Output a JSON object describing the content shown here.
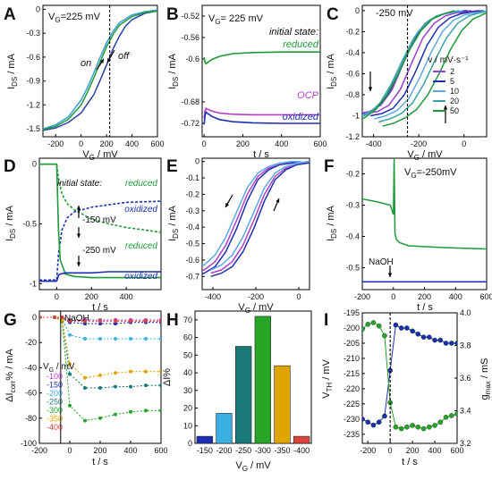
{
  "figure": {
    "title": ""
  },
  "chart_data": [
    {
      "panel": "A",
      "type": "line",
      "xlabel": "V_G / mV",
      "ylabel": "I_DS / mA",
      "xlim": [
        -300,
        600
      ],
      "ylim": [
        -1.6,
        0.05
      ],
      "xticks": [
        -200,
        0,
        200,
        400,
        600
      ],
      "yticks": [
        -1.5,
        -1.2,
        -0.9,
        -0.6,
        -0.3,
        0.0
      ],
      "annotations": [
        "V_G=225 mV",
        "on",
        "off"
      ],
      "marker_x": 225,
      "series": [
        {
          "color": "#2b3fa8",
          "x": [
            -300,
            -200,
            -100,
            0,
            100,
            150,
            200,
            250,
            300,
            350,
            400,
            500,
            600
          ],
          "y": [
            -1.52,
            -1.49,
            -1.42,
            -1.3,
            -1.07,
            -0.89,
            -0.7,
            -0.5,
            -0.34,
            -0.21,
            -0.13,
            -0.05,
            -0.02
          ]
        },
        {
          "color": "#3b9fd6",
          "x": [
            -300,
            -200,
            -100,
            0,
            50,
            100,
            150,
            200,
            250,
            300,
            400,
            500,
            600
          ],
          "y": [
            -1.5,
            -1.45,
            -1.35,
            -1.14,
            -0.98,
            -0.8,
            -0.6,
            -0.42,
            -0.28,
            -0.17,
            -0.07,
            -0.03,
            -0.01
          ]
        },
        {
          "color": "#1f9a3a",
          "x": [
            -300,
            -200,
            -100,
            0,
            50,
            100,
            150,
            200,
            250,
            300,
            400,
            500,
            600
          ],
          "y": [
            -1.51,
            -1.47,
            -1.38,
            -1.2,
            -1.04,
            -0.86,
            -0.66,
            -0.47,
            -0.32,
            -0.2,
            -0.09,
            -0.04,
            -0.02
          ]
        }
      ]
    },
    {
      "panel": "B",
      "type": "line",
      "xlabel": "t / s",
      "ylabel": "I_DS / mA",
      "xlim": [
        -10,
        600
      ],
      "ylim": [
        -0.745,
        -0.5
      ],
      "xticks": [
        0,
        200,
        400,
        600
      ],
      "yticks": [
        -0.72,
        -0.68,
        -0.6,
        -0.56,
        -0.52
      ],
      "annotations": [
        "V_G= 225 mV",
        "initial state:"
      ],
      "series": [
        {
          "name": "reduced",
          "color": "#1f9a3a",
          "x": [
            0,
            5,
            10,
            20,
            40,
            80,
            150,
            250,
            400,
            600
          ],
          "y": [
            -0.597,
            -0.606,
            -0.609,
            -0.606,
            -0.601,
            -0.595,
            -0.59,
            -0.588,
            -0.587,
            -0.587
          ]
        },
        {
          "name": "OCP",
          "color": "#b23fc6",
          "x": [
            0,
            5,
            10,
            20,
            40,
            80,
            150,
            250,
            400,
            600
          ],
          "y": [
            -0.71,
            -0.697,
            -0.692,
            -0.694,
            -0.697,
            -0.701,
            -0.703,
            -0.704,
            -0.704,
            -0.704
          ]
        },
        {
          "name": "oxidized",
          "color": "#1d2fb0",
          "x": [
            0,
            5,
            10,
            20,
            40,
            80,
            150,
            250,
            400,
            600
          ],
          "y": [
            -0.722,
            -0.706,
            -0.699,
            -0.702,
            -0.707,
            -0.713,
            -0.717,
            -0.719,
            -0.72,
            -0.72
          ]
        }
      ]
    },
    {
      "panel": "C",
      "type": "line",
      "xlabel": "V_G / mV",
      "ylabel": "I_DS / mA",
      "xlim": [
        -450,
        100
      ],
      "ylim": [
        -1.2,
        0.05
      ],
      "xticks": [
        -400,
        -200,
        0
      ],
      "yticks": [
        -1.2,
        -1.0,
        -0.8,
        -0.6,
        -0.4,
        -0.2,
        0.0
      ],
      "annotations": [
        "-250 mV",
        "v / mV·s⁻¹"
      ],
      "marker_x": -250,
      "series": [
        {
          "name": "2",
          "color": "#9a3fd0",
          "x": [
            -450,
            -400,
            -350,
            -300,
            -250,
            -200,
            -150,
            -100,
            -50,
            0,
            50
          ],
          "y": [
            -0.98,
            -0.96,
            -0.9,
            -0.75,
            -0.5,
            -0.26,
            -0.12,
            -0.05,
            -0.02,
            -0.01,
            0.0
          ]
        },
        {
          "name": "5",
          "color": "#1d2fb0",
          "x": [
            -450,
            -400,
            -350,
            -300,
            -250,
            -200,
            -150,
            -100,
            -50,
            0,
            50
          ],
          "y": [
            -1.0,
            -0.98,
            -0.93,
            -0.8,
            -0.58,
            -0.33,
            -0.16,
            -0.07,
            -0.03,
            -0.01,
            0.0
          ]
        },
        {
          "name": "10",
          "color": "#5aa9e6",
          "x": [
            -450,
            -400,
            -350,
            -300,
            -250,
            -200,
            -150,
            -100,
            -50,
            0,
            50
          ],
          "y": [
            -1.03,
            -1.0,
            -0.95,
            -0.84,
            -0.64,
            -0.4,
            -0.2,
            -0.09,
            -0.04,
            -0.02,
            0.0
          ]
        },
        {
          "name": "20",
          "color": "#3aa3a3",
          "x": [
            -450,
            -400,
            -350,
            -300,
            -250,
            -200,
            -150,
            -100,
            -50,
            0,
            50
          ],
          "y": [
            -1.06,
            -1.03,
            -0.98,
            -0.88,
            -0.7,
            -0.47,
            -0.26,
            -0.12,
            -0.05,
            -0.02,
            0.0
          ]
        },
        {
          "name": "50",
          "color": "#1f9a3a",
          "x": [
            -450,
            -400,
            -350,
            -300,
            -250,
            -200,
            -150,
            -100,
            -50,
            0,
            50
          ],
          "y": [
            -1.1,
            -1.07,
            -1.02,
            -0.94,
            -0.8,
            -0.6,
            -0.37,
            -0.19,
            -0.08,
            -0.03,
            0.0
          ]
        }
      ]
    },
    {
      "panel": "D",
      "type": "line",
      "xlabel": "t / s",
      "ylabel": "I_DS / mA",
      "xlim": [
        -100,
        600
      ],
      "ylim": [
        -1.05,
        0.05
      ],
      "xticks": [
        0,
        200,
        400
      ],
      "yticks": [
        -1.0,
        -0.5,
        0.0
      ],
      "annotations": [
        "initial state:",
        "-150 mV",
        "-250 mV"
      ],
      "series": [
        {
          "name": "reduced",
          "color": "#1f9a3a",
          "x": [
            -100,
            0,
            10,
            30,
            60,
            100,
            200,
            300,
            400,
            600
          ],
          "y": [
            0.0,
            0.0,
            -0.12,
            -0.25,
            -0.33,
            -0.38,
            -0.46,
            -0.5,
            -0.53,
            -0.57
          ]
        },
        {
          "name": "oxidized",
          "color": "#1d2fb0",
          "x": [
            -100,
            0,
            10,
            30,
            60,
            100,
            200,
            300,
            400,
            600
          ],
          "y": [
            -0.97,
            -0.97,
            -0.75,
            -0.55,
            -0.45,
            -0.4,
            -0.36,
            -0.34,
            -0.32,
            -0.31
          ]
        },
        {
          "name": "reduced",
          "color": "#1f9a3a",
          "x": [
            -100,
            0,
            10,
            20,
            50,
            100,
            200,
            300,
            400,
            600
          ],
          "y": [
            0.0,
            0.0,
            -0.55,
            -0.8,
            -0.92,
            -0.94,
            -0.95,
            -0.95,
            -0.95,
            -0.95
          ]
        },
        {
          "name": "oxidized",
          "color": "#1d2fb0",
          "x": [
            -100,
            0,
            10,
            20,
            50,
            100,
            200,
            300,
            400,
            600
          ],
          "y": [
            -0.98,
            -0.98,
            -0.93,
            -0.92,
            -0.91,
            -0.91,
            -0.91,
            -0.9,
            -0.9,
            -0.9
          ]
        }
      ]
    },
    {
      "panel": "E",
      "type": "line",
      "xlabel": "V_G / mV",
      "ylabel": "I_DS / mA",
      "xlim": [
        -450,
        50
      ],
      "ylim": [
        -0.78,
        0.02
      ],
      "xticks": [
        -400,
        -200,
        0
      ],
      "yticks": [
        -0.7,
        -0.6,
        -0.5,
        -0.4,
        -0.3,
        -0.2,
        -0.1,
        0.0
      ],
      "series": [
        {
          "color": "#b23fc6",
          "x": [
            -450,
            -400,
            -350,
            -300,
            -250,
            -200,
            -150,
            -100,
            -50,
            0,
            50
          ],
          "y": [
            -0.68,
            -0.66,
            -0.61,
            -0.51,
            -0.36,
            -0.2,
            -0.09,
            -0.04,
            -0.02,
            -0.01,
            0.0
          ]
        },
        {
          "color": "#1d2fb0",
          "x": [
            -450,
            -400,
            -350,
            -300,
            -250,
            -200,
            -150,
            -100,
            -50,
            0,
            50
          ],
          "y": [
            -0.7,
            -0.68,
            -0.64,
            -0.55,
            -0.41,
            -0.24,
            -0.11,
            -0.05,
            -0.02,
            -0.01,
            0.0
          ]
        },
        {
          "color": "#5aa9e6",
          "x": [
            -450,
            -400,
            -350,
            -300,
            -250,
            -200,
            -150,
            -100,
            -50,
            0,
            50
          ],
          "y": [
            -0.66,
            -0.63,
            -0.57,
            -0.46,
            -0.31,
            -0.16,
            -0.07,
            -0.03,
            -0.01,
            0.0,
            0.0
          ]
        }
      ]
    },
    {
      "panel": "F",
      "type": "line",
      "xlabel": "t / s",
      "ylabel": "I_DS / mA",
      "xlim": [
        -200,
        600
      ],
      "ylim": [
        -0.57,
        -0.15
      ],
      "xticks": [
        -200,
        0,
        200,
        400,
        600
      ],
      "yticks": [
        -0.5,
        -0.4,
        -0.3,
        -0.2
      ],
      "annotations": [
        "V_G=-250mV",
        "NaOH"
      ],
      "series": [
        {
          "color": "#1f9a3a",
          "x": [
            -200,
            -100,
            -20,
            0,
            5,
            10,
            20,
            40,
            100,
            300,
            600
          ],
          "y": [
            -0.28,
            -0.29,
            -0.3,
            -0.33,
            -0.15,
            -0.39,
            -0.41,
            -0.42,
            -0.43,
            -0.435,
            -0.44
          ]
        },
        {
          "color": "#1d2fb0",
          "x": [
            -200,
            -100,
            0,
            100,
            300,
            600
          ],
          "y": [
            -0.545,
            -0.545,
            -0.545,
            -0.545,
            -0.545,
            -0.545
          ]
        }
      ]
    },
    {
      "panel": "G",
      "type": "line",
      "xlabel": "t / s",
      "ylabel": "ΔI_corr% / mA",
      "xlim": [
        -200,
        600
      ],
      "ylim": [
        -100,
        5
      ],
      "xticks": [
        -200,
        0,
        200,
        400,
        600
      ],
      "yticks": [
        -100,
        -80,
        -60,
        -40,
        -20,
        0
      ],
      "annotations": [
        "NaOH",
        "V_G / mV"
      ],
      "series": [
        {
          "name": "-100",
          "color": "#b23fc6",
          "x": [
            -200,
            -100,
            -50,
            0,
            100,
            200,
            300,
            400,
            500,
            600
          ],
          "y": [
            0,
            0,
            0,
            -2,
            -2,
            -2,
            -2,
            -2,
            -2,
            -2
          ]
        },
        {
          "name": "-150",
          "color": "#1d2fb0",
          "x": [
            -200,
            -100,
            -50,
            0,
            100,
            200,
            300,
            400,
            500,
            600
          ],
          "y": [
            0,
            0,
            0,
            -4,
            -5,
            -5,
            -5,
            -4,
            -4,
            -4
          ]
        },
        {
          "name": "-200",
          "color": "#3ab0e0",
          "x": [
            -200,
            -100,
            -50,
            0,
            100,
            200,
            300,
            400,
            500,
            600
          ],
          "y": [
            0,
            0,
            -1,
            -14,
            -17,
            -17,
            -17,
            -17,
            -17,
            -17
          ]
        },
        {
          "name": "-250",
          "color": "#1a7a7a",
          "x": [
            -200,
            -100,
            -50,
            0,
            100,
            200,
            300,
            400,
            500,
            600
          ],
          "y": [
            0,
            0,
            -2,
            -45,
            -56,
            -56,
            -55,
            -55,
            -54,
            -54
          ]
        },
        {
          "name": "-300",
          "color": "#28a428",
          "x": [
            -200,
            -100,
            -50,
            0,
            100,
            200,
            300,
            400,
            500,
            600
          ],
          "y": [
            0,
            0,
            -3,
            -70,
            -82,
            -80,
            -77,
            -75,
            -74,
            -74
          ]
        },
        {
          "name": "-350",
          "color": "#e0a500",
          "x": [
            -200,
            -100,
            -50,
            0,
            100,
            200,
            300,
            400,
            500,
            600
          ],
          "y": [
            0,
            0,
            -2,
            -37,
            -48,
            -46,
            -44,
            -43,
            -43,
            -43
          ]
        },
        {
          "name": "-400",
          "color": "#d9443b",
          "x": [
            -200,
            -100,
            -50,
            0,
            100,
            200,
            300,
            400,
            500,
            600
          ],
          "y": [
            0,
            0,
            0,
            -3,
            -3,
            -3,
            -3,
            -3,
            -3,
            -3
          ]
        }
      ]
    },
    {
      "panel": "H",
      "type": "bar",
      "xlabel": "V_G / mV",
      "ylabel": "ΔI%",
      "ylim": [
        0,
        75
      ],
      "yticks": [
        0,
        10,
        20,
        30,
        40,
        50,
        60,
        70
      ],
      "categories": [
        "-150",
        "-200",
        "-250",
        "-300",
        "-350",
        "-400"
      ],
      "values": [
        4,
        17,
        55,
        72,
        44,
        4
      ],
      "colors": [
        "#1d2fb0",
        "#3ab0e0",
        "#1a7a7a",
        "#28a428",
        "#e0a500",
        "#d9443b"
      ]
    },
    {
      "panel": "I",
      "type": "scatter",
      "xlabel": "t / s",
      "ylabel": "V_TH / mV",
      "ylabel2": "g_max / mS",
      "xlim": [
        -250,
        600
      ],
      "ylim": [
        -238,
        -195
      ],
      "ylim2": [
        3.2,
        4.0
      ],
      "xticks": [
        -200,
        0,
        200,
        400,
        600
      ],
      "yticks": [
        -235,
        -230,
        -225,
        -220,
        -215,
        -210,
        -205,
        -200,
        -195
      ],
      "yticks2": [
        3.2,
        3.4,
        3.6,
        3.8,
        4.0
      ],
      "series": [
        {
          "name": "V_TH",
          "color": "#1d2fb0",
          "x": [
            -250,
            -200,
            -150,
            -100,
            -50,
            0,
            50,
            100,
            150,
            200,
            250,
            300,
            350,
            400,
            450,
            500,
            550,
            600
          ],
          "y": [
            -230,
            -231,
            -232,
            -231,
            -229,
            -214,
            -199,
            -200,
            -200,
            -201,
            -202,
            -203,
            -203,
            -204,
            -204,
            -205,
            -205,
            -205
          ]
        },
        {
          "name": "g_max",
          "color": "#28a428",
          "axis": "right",
          "x": [
            -250,
            -200,
            -150,
            -100,
            -50,
            0,
            50,
            100,
            150,
            200,
            250,
            300,
            350,
            400,
            450,
            500,
            550,
            600
          ],
          "y": [
            3.9,
            3.93,
            3.94,
            3.92,
            3.86,
            3.45,
            3.3,
            3.29,
            3.3,
            3.31,
            3.3,
            3.29,
            3.3,
            3.31,
            3.33,
            3.36,
            3.37,
            3.38
          ]
        }
      ]
    }
  ]
}
